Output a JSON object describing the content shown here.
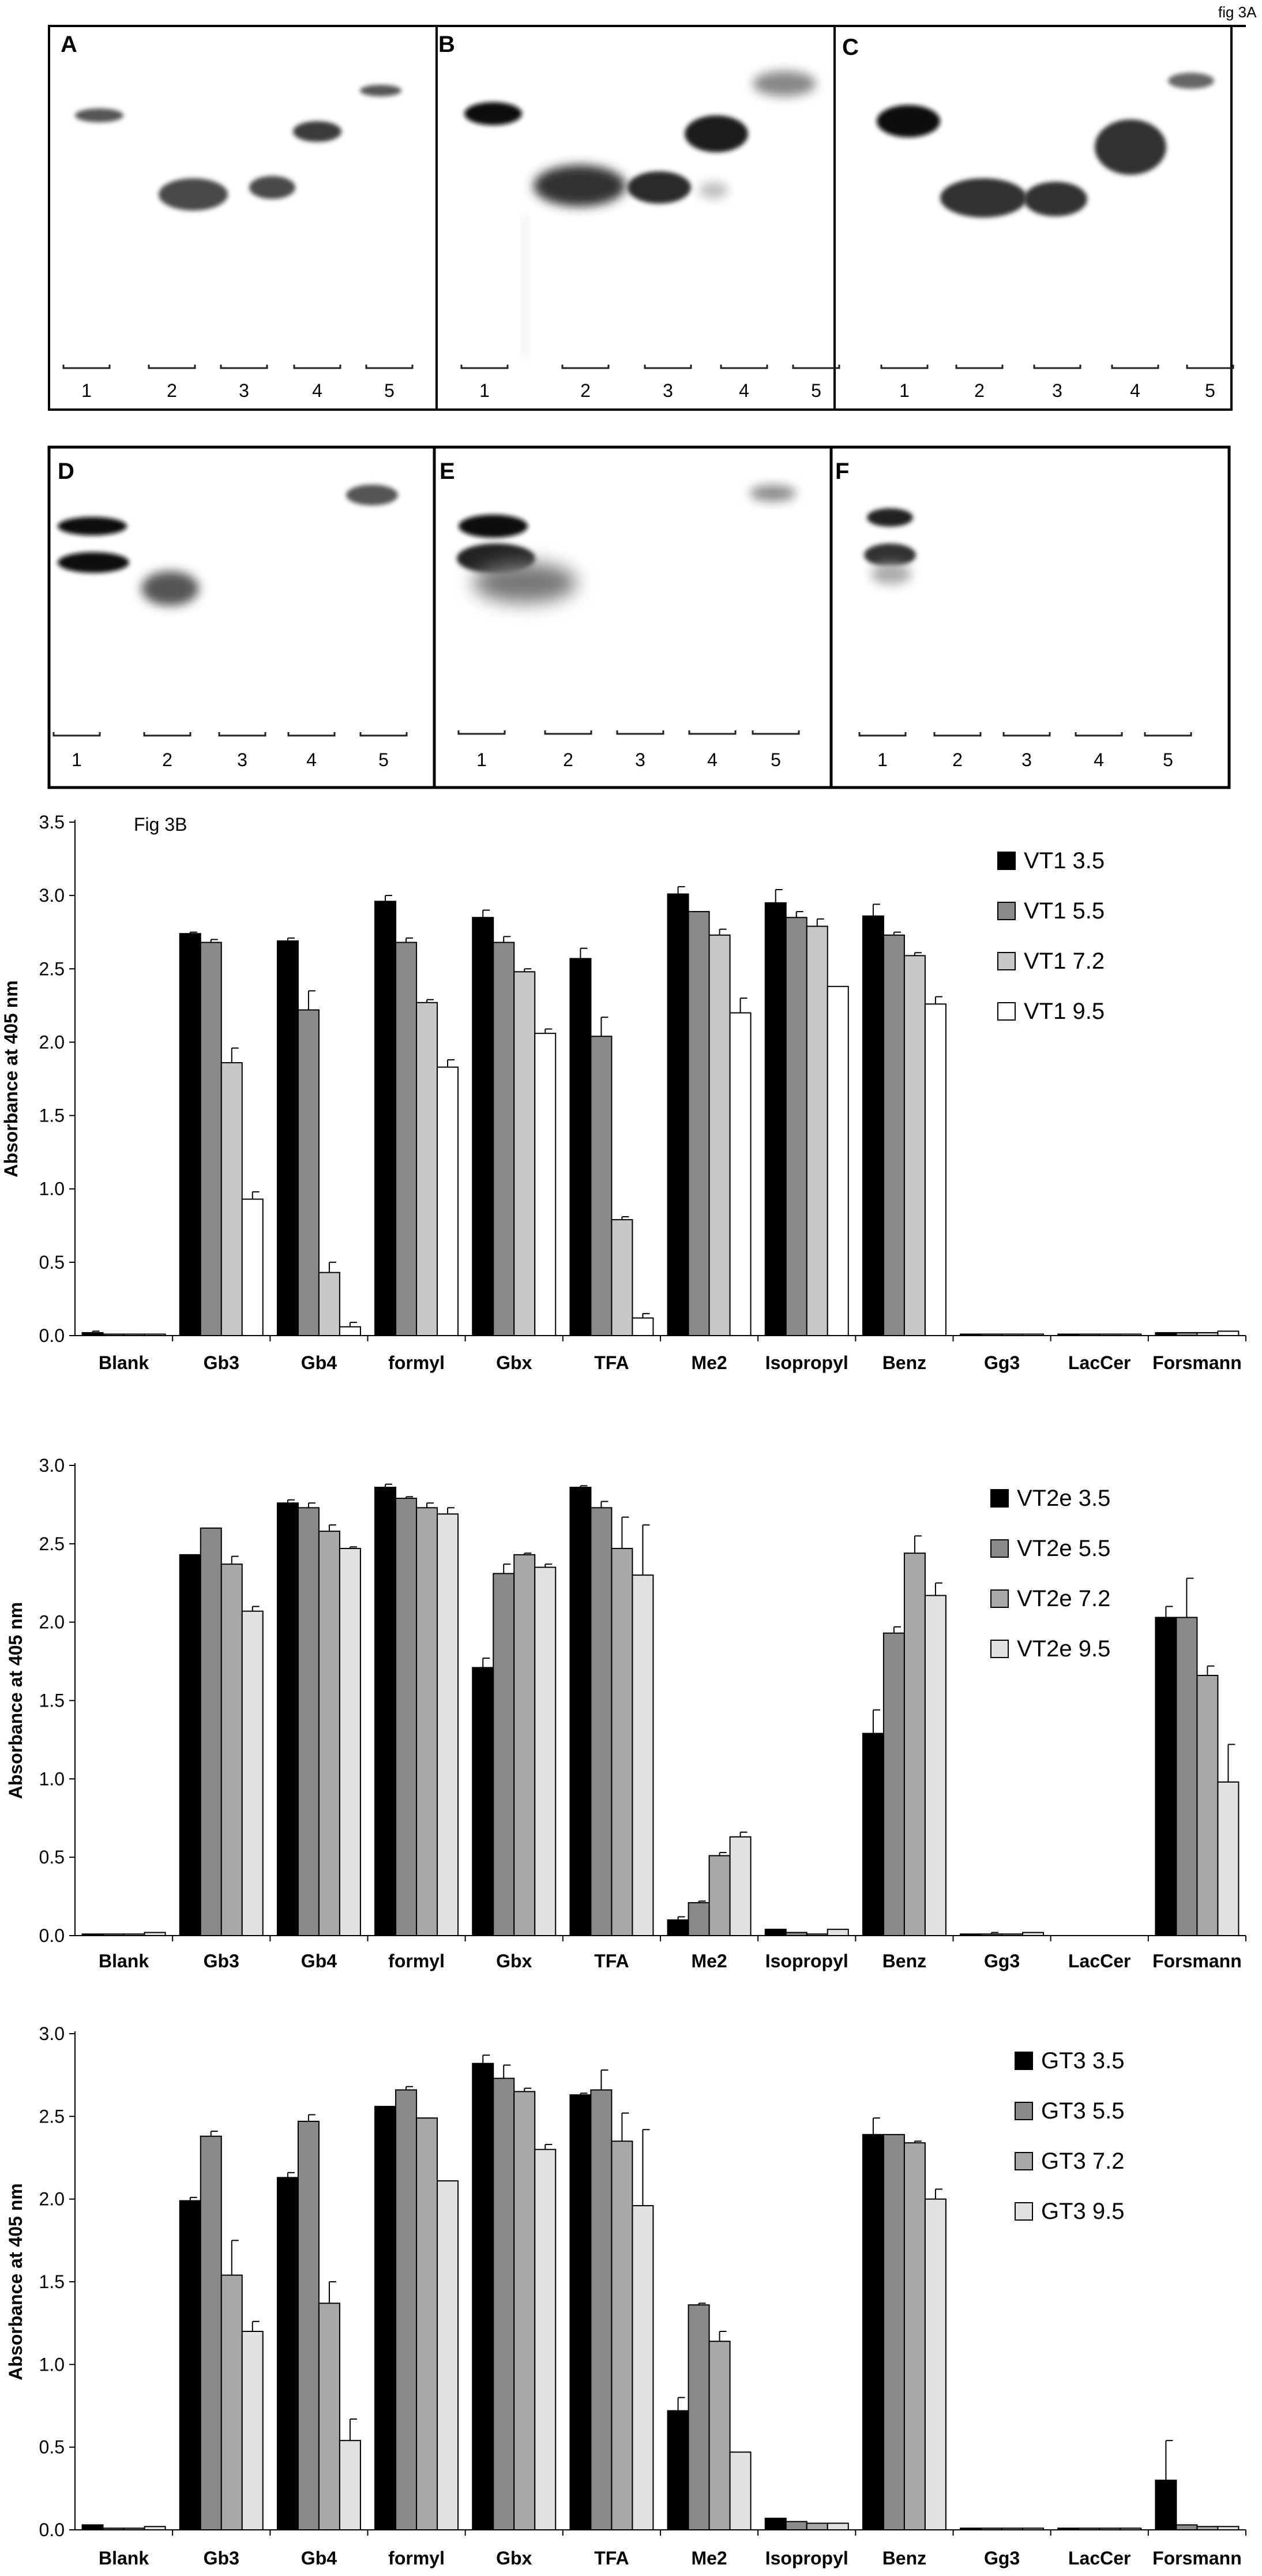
{
  "figure_label_a": "fig 3A",
  "figure_label_b": "Fig 3B",
  "blots": {
    "panels": [
      {
        "label": "A",
        "lanes": [
          "1",
          "2",
          "3",
          "4",
          "5"
        ]
      },
      {
        "label": "B",
        "lanes": [
          "1",
          "2",
          "3",
          "4",
          "5"
        ]
      },
      {
        "label": "C",
        "lanes": [
          "1",
          "2",
          "3",
          "4",
          "5"
        ]
      },
      {
        "label": "D",
        "lanes": [
          "1",
          "2",
          "3",
          "4",
          "5"
        ]
      },
      {
        "label": "E",
        "lanes": [
          "1",
          "2",
          "3",
          "4",
          "5"
        ]
      },
      {
        "label": "F",
        "lanes": [
          "1",
          "2",
          "3",
          "4",
          "5"
        ]
      }
    ]
  },
  "colors": {
    "series": [
      "#000000",
      "#8a8a8a",
      "#c8c8c8",
      "#ffffff"
    ],
    "series_vt2e": [
      "#000000",
      "#8a8a8a",
      "#a8a8a8",
      "#e2e2e2"
    ],
    "series_gt3": [
      "#000000",
      "#8a8a8a",
      "#a8a8a8",
      "#e2e2e2"
    ]
  },
  "chart_data": [
    {
      "type": "bar",
      "title": "",
      "xlabel": "",
      "ylabel": "Absorbance at 405 nm",
      "ylim": [
        0,
        3.5
      ],
      "yticks": [
        "0.0",
        "0.5",
        "1.0",
        "1.5",
        "2.0",
        "2.5",
        "3.0",
        "3.5"
      ],
      "legend_position": "top-right",
      "categories": [
        "Blank",
        "Gb3",
        "Gb4",
        "formyl",
        "Gbx",
        "TFA",
        "Me2",
        "Isopropyl",
        "Benz",
        "Gg3",
        "LacCer",
        "Forsmann"
      ],
      "series": [
        {
          "name": "VT1 3.5",
          "values": [
            0.02,
            2.74,
            2.69,
            2.96,
            2.85,
            2.57,
            3.01,
            2.95,
            2.86,
            0.01,
            0.01,
            0.02
          ],
          "errors": [
            0.01,
            0.01,
            0.02,
            0.04,
            0.05,
            0.07,
            0.05,
            0.09,
            0.08,
            0.005,
            0.005,
            0.005
          ]
        },
        {
          "name": "VT1 5.5",
          "values": [
            0.01,
            2.68,
            2.22,
            2.68,
            2.68,
            2.04,
            2.89,
            2.85,
            2.73,
            0.01,
            0.01,
            0.02
          ],
          "errors": [
            0.005,
            0.02,
            0.13,
            0.03,
            0.04,
            0.13,
            0.0,
            0.04,
            0.02,
            0.005,
            0.005,
            0.005
          ]
        },
        {
          "name": "VT1 7.2",
          "values": [
            0.01,
            1.86,
            0.43,
            2.27,
            2.48,
            0.79,
            2.73,
            2.79,
            2.59,
            0.01,
            0.01,
            0.02
          ],
          "errors": [
            0.005,
            0.1,
            0.07,
            0.02,
            0.02,
            0.02,
            0.04,
            0.05,
            0.02,
            0.005,
            0.005,
            0.005
          ]
        },
        {
          "name": "VT1 9.5",
          "values": [
            0.01,
            0.93,
            0.06,
            1.83,
            2.06,
            0.12,
            2.2,
            2.38,
            2.26,
            0.01,
            0.01,
            0.03
          ],
          "errors": [
            0.005,
            0.05,
            0.03,
            0.05,
            0.03,
            0.03,
            0.1,
            0.0,
            0.05,
            0.005,
            0.005,
            0.005
          ]
        }
      ]
    },
    {
      "type": "bar",
      "title": "",
      "xlabel": "",
      "ylabel": "Absorbance at 405 nm",
      "ylim": [
        0,
        3.0
      ],
      "yticks": [
        "0.0",
        "0.5",
        "1.0",
        "1.5",
        "2.0",
        "2.5",
        "3.0"
      ],
      "legend_position": "top-right",
      "categories": [
        "Blank",
        "Gb3",
        "Gb4",
        "formyl",
        "Gbx",
        "TFA",
        "Me2",
        "Isopropyl",
        "Benz",
        "Gg3",
        "LacCer",
        "Forsmann"
      ],
      "series": [
        {
          "name": "VT2e 3.5",
          "values": [
            0.01,
            2.43,
            2.76,
            2.86,
            1.71,
            2.86,
            0.1,
            0.04,
            1.29,
            0.01,
            0.0,
            2.03
          ],
          "errors": [
            0.005,
            0.0,
            0.02,
            0.02,
            0.06,
            0.01,
            0.02,
            0.005,
            0.15,
            0.005,
            0.0,
            0.07
          ]
        },
        {
          "name": "VT2e 5.5",
          "values": [
            0.01,
            2.6,
            2.73,
            2.79,
            2.31,
            2.73,
            0.21,
            0.02,
            1.93,
            0.01,
            0.0,
            2.03
          ],
          "errors": [
            0.005,
            0.0,
            0.03,
            0.01,
            0.06,
            0.04,
            0.01,
            0.005,
            0.04,
            0.01,
            0.0,
            0.25
          ]
        },
        {
          "name": "VT2e 7.2",
          "values": [
            0.01,
            2.37,
            2.58,
            2.73,
            2.43,
            2.47,
            0.51,
            0.01,
            2.44,
            0.01,
            0.0,
            1.66
          ],
          "errors": [
            0.005,
            0.05,
            0.04,
            0.03,
            0.01,
            0.2,
            0.02,
            0.005,
            0.11,
            0.005,
            0.0,
            0.06
          ]
        },
        {
          "name": "VT2e 9.5",
          "values": [
            0.02,
            2.07,
            2.47,
            2.69,
            2.35,
            2.3,
            0.63,
            0.04,
            2.17,
            0.02,
            0.0,
            0.98
          ],
          "errors": [
            0.005,
            0.03,
            0.01,
            0.04,
            0.02,
            0.32,
            0.03,
            0.005,
            0.08,
            0.005,
            0.0,
            0.24
          ]
        }
      ]
    },
    {
      "type": "bar",
      "title": "",
      "xlabel": "",
      "ylabel": "Absorbance at 405 nm",
      "ylim": [
        0,
        3.0
      ],
      "yticks": [
        "0.0",
        "0.5",
        "1.0",
        "1.5",
        "2.0",
        "2.5",
        "3.0"
      ],
      "legend_position": "top-right",
      "categories": [
        "Blank",
        "Gb3",
        "Gb4",
        "formyl",
        "Gbx",
        "TFA",
        "Me2",
        "Isopropyl",
        "Benz",
        "Gg3",
        "LacCer",
        "Forsmann"
      ],
      "series": [
        {
          "name": "GT3 3.5",
          "values": [
            0.03,
            1.99,
            2.13,
            2.56,
            2.82,
            2.63,
            0.72,
            0.07,
            2.39,
            0.01,
            0.01,
            0.3
          ],
          "errors": [
            0.005,
            0.02,
            0.03,
            0.0,
            0.05,
            0.01,
            0.08,
            0.005,
            0.1,
            0.005,
            0.005,
            0.24
          ]
        },
        {
          "name": "GT3 5.5",
          "values": [
            0.01,
            2.38,
            2.47,
            2.66,
            2.73,
            2.66,
            1.36,
            0.05,
            2.39,
            0.01,
            0.01,
            0.03
          ],
          "errors": [
            0.005,
            0.03,
            0.04,
            0.02,
            0.08,
            0.12,
            0.01,
            0.005,
            0.0,
            0.005,
            0.005,
            0.005
          ]
        },
        {
          "name": "GT3 7.2",
          "values": [
            0.01,
            1.54,
            1.37,
            2.49,
            2.65,
            2.35,
            1.14,
            0.04,
            2.34,
            0.01,
            0.01,
            0.02
          ],
          "errors": [
            0.005,
            0.21,
            0.13,
            0.0,
            0.02,
            0.17,
            0.06,
            0.005,
            0.01,
            0.005,
            0.005,
            0.005
          ]
        },
        {
          "name": "GT3 9.5",
          "values": [
            0.02,
            1.2,
            0.54,
            2.11,
            2.3,
            1.96,
            0.47,
            0.04,
            2.0,
            0.01,
            0.01,
            0.02
          ],
          "errors": [
            0.005,
            0.06,
            0.13,
            0.0,
            0.03,
            0.46,
            0.0,
            0.005,
            0.06,
            0.005,
            0.005,
            0.005
          ]
        }
      ]
    }
  ]
}
